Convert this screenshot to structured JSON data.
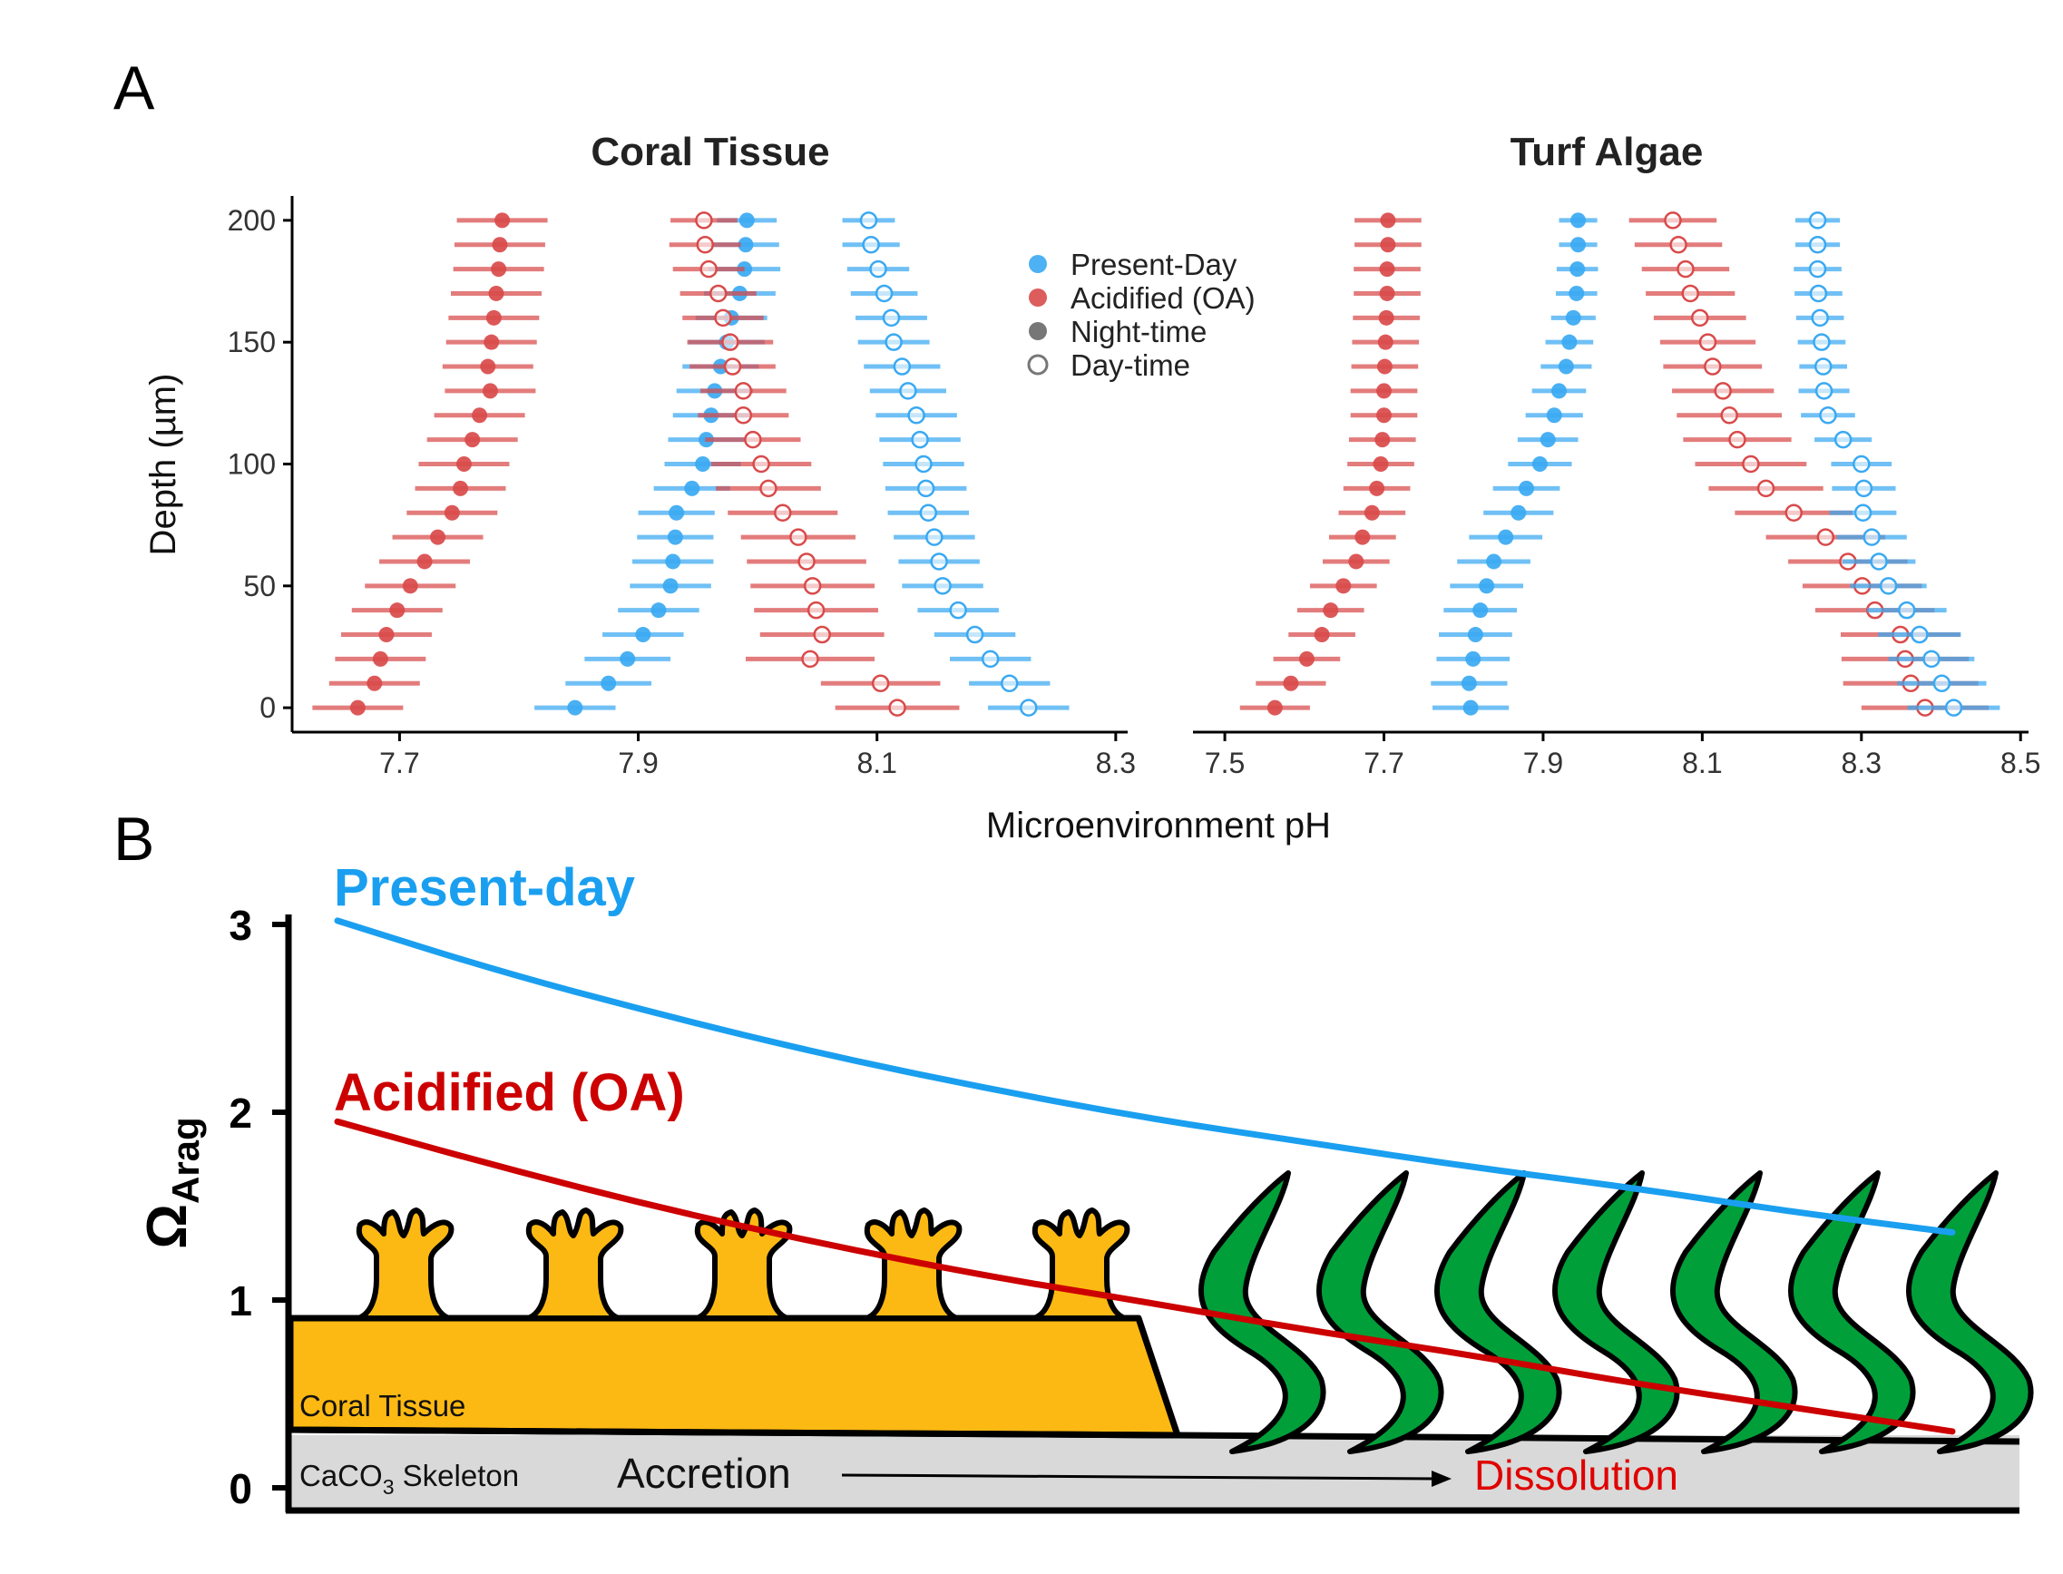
{
  "panel_a_letter": "A",
  "panel_b_letter": "B",
  "colors": {
    "present": "#3aa9f2",
    "acidified": "#d94a4a",
    "night_marker": "#777777",
    "coral": "#fdb913",
    "algae": "#009f3a",
    "skeleton": "#d9d9d9",
    "present_line": "#1a9ff0",
    "oa_line": "#cc0000"
  },
  "legend": {
    "present": "Present-Day",
    "acidified": "Acidified (OA)",
    "night": "Night-time",
    "day": "Day-time"
  },
  "axis": {
    "x_title": "Microenvironment pH",
    "y_title": "Depth (µm)"
  },
  "chart_data": [
    {
      "type": "scatter",
      "title": "Coral Tissue",
      "xlabel": "Microenvironment pH",
      "ylabel": "Depth (µm)",
      "xlim": [
        7.61,
        8.31
      ],
      "ylim": [
        -10,
        210
      ],
      "xticks": [
        7.7,
        7.9,
        8.1,
        8.3
      ],
      "yticks": [
        0,
        50,
        100,
        150,
        200
      ],
      "depths": [
        200,
        190,
        180,
        170,
        160,
        150,
        140,
        130,
        120,
        110,
        100,
        90,
        80,
        70,
        60,
        50,
        40,
        30,
        20,
        10,
        0
      ],
      "series": [
        {
          "name": "Acidified (OA), Night-time",
          "treatment": "acidified",
          "time": "night",
          "values": [
            7.786,
            7.784,
            7.783,
            7.781,
            7.779,
            7.777,
            7.774,
            7.776,
            7.767,
            7.761,
            7.754,
            7.751,
            7.744,
            7.732,
            7.721,
            7.709,
            7.698,
            7.689,
            7.684,
            7.679,
            7.665
          ],
          "err": [
            0.038,
            0.038,
            0.038,
            0.038,
            0.038,
            0.038,
            0.038,
            0.038,
            0.038,
            0.038,
            0.038,
            0.038,
            0.038,
            0.038,
            0.038,
            0.038,
            0.038,
            0.038,
            0.038,
            0.038,
            0.038
          ]
        },
        {
          "name": "Present-Day, Night-time",
          "treatment": "present",
          "time": "night",
          "values": [
            7.991,
            7.99,
            7.989,
            7.985,
            7.978,
            7.974,
            7.969,
            7.964,
            7.961,
            7.957,
            7.954,
            7.945,
            7.932,
            7.931,
            7.929,
            7.927,
            7.917,
            7.904,
            7.891,
            7.875,
            7.847
          ],
          "err": [
            0.025,
            0.028,
            0.03,
            0.03,
            0.03,
            0.032,
            0.032,
            0.032,
            0.032,
            0.032,
            0.032,
            0.032,
            0.032,
            0.032,
            0.034,
            0.034,
            0.034,
            0.034,
            0.036,
            0.036,
            0.034
          ]
        },
        {
          "name": "Acidified (OA), Day-time",
          "treatment": "acidified",
          "time": "day",
          "values": [
            7.955,
            7.956,
            7.959,
            7.967,
            7.971,
            7.977,
            7.979,
            7.988,
            7.988,
            7.996,
            8.003,
            8.009,
            8.021,
            8.034,
            8.041,
            8.046,
            8.049,
            8.054,
            8.044,
            8.103,
            8.117
          ],
          "err": [
            0.028,
            0.03,
            0.03,
            0.032,
            0.034,
            0.036,
            0.036,
            0.036,
            0.038,
            0.04,
            0.042,
            0.044,
            0.046,
            0.048,
            0.05,
            0.052,
            0.052,
            0.052,
            0.054,
            0.05,
            0.052
          ]
        },
        {
          "name": "Present-Day, Day-time",
          "treatment": "present",
          "time": "day",
          "values": [
            8.093,
            8.095,
            8.101,
            8.106,
            8.112,
            8.114,
            8.121,
            8.126,
            8.133,
            8.136,
            8.139,
            8.141,
            8.143,
            8.148,
            8.152,
            8.155,
            8.168,
            8.182,
            8.195,
            8.211,
            8.227
          ],
          "err": [
            0.022,
            0.024,
            0.026,
            0.028,
            0.03,
            0.03,
            0.032,
            0.032,
            0.034,
            0.034,
            0.034,
            0.034,
            0.034,
            0.034,
            0.034,
            0.034,
            0.034,
            0.034,
            0.034,
            0.034,
            0.034
          ]
        }
      ]
    },
    {
      "type": "scatter",
      "title": "Turf Algae",
      "xlabel": "Microenvironment pH",
      "ylabel": "Depth (µm)",
      "xlim": [
        7.46,
        8.51
      ],
      "ylim": [
        -10,
        210
      ],
      "xticks": [
        7.5,
        7.7,
        7.9,
        8.1,
        8.3,
        8.5
      ],
      "yticks": [
        0,
        50,
        100,
        150,
        200
      ],
      "depths": [
        200,
        190,
        180,
        170,
        160,
        150,
        140,
        130,
        120,
        110,
        100,
        90,
        80,
        70,
        60,
        50,
        40,
        30,
        20,
        10,
        0
      ],
      "series": [
        {
          "name": "Acidified (OA), Night-time",
          "treatment": "acidified",
          "time": "night",
          "values": [
            7.705,
            7.705,
            7.704,
            7.704,
            7.703,
            7.702,
            7.701,
            7.7,
            7.7,
            7.698,
            7.696,
            7.691,
            7.685,
            7.673,
            7.665,
            7.649,
            7.633,
            7.622,
            7.603,
            7.583,
            7.563
          ],
          "err": [
            0.042,
            0.042,
            0.042,
            0.042,
            0.042,
            0.042,
            0.042,
            0.042,
            0.042,
            0.042,
            0.042,
            0.042,
            0.042,
            0.042,
            0.042,
            0.042,
            0.042,
            0.042,
            0.042,
            0.044,
            0.044
          ]
        },
        {
          "name": "Present-Day, Night-time",
          "treatment": "present",
          "time": "night",
          "values": [
            7.944,
            7.944,
            7.943,
            7.942,
            7.938,
            7.933,
            7.929,
            7.92,
            7.914,
            7.906,
            7.896,
            7.879,
            7.869,
            7.853,
            7.838,
            7.829,
            7.821,
            7.815,
            7.812,
            7.807,
            7.809
          ],
          "err": [
            0.024,
            0.024,
            0.026,
            0.026,
            0.028,
            0.03,
            0.032,
            0.034,
            0.036,
            0.038,
            0.04,
            0.042,
            0.044,
            0.046,
            0.046,
            0.046,
            0.046,
            0.046,
            0.046,
            0.048,
            0.048
          ]
        },
        {
          "name": "Acidified (OA), Day-time",
          "treatment": "acidified",
          "time": "day",
          "values": [
            8.063,
            8.07,
            8.079,
            8.085,
            8.097,
            8.107,
            8.113,
            8.126,
            8.134,
            8.144,
            8.161,
            8.18,
            8.215,
            8.255,
            8.283,
            8.301,
            8.317,
            8.349,
            8.355,
            8.362,
            8.38
          ],
          "err": [
            0.055,
            0.055,
            0.055,
            0.056,
            0.058,
            0.06,
            0.062,
            0.064,
            0.066,
            0.068,
            0.07,
            0.072,
            0.074,
            0.075,
            0.075,
            0.075,
            0.075,
            0.075,
            0.08,
            0.085,
            0.08
          ]
        },
        {
          "name": "Present-Day, Day-time",
          "treatment": "present",
          "time": "day",
          "values": [
            8.245,
            8.245,
            8.245,
            8.246,
            8.248,
            8.25,
            8.252,
            8.253,
            8.258,
            8.277,
            8.3,
            8.303,
            8.302,
            8.313,
            8.322,
            8.334,
            8.357,
            8.373,
            8.388,
            8.401,
            8.416
          ],
          "err": [
            0.028,
            0.028,
            0.03,
            0.03,
            0.03,
            0.03,
            0.03,
            0.032,
            0.034,
            0.036,
            0.038,
            0.04,
            0.042,
            0.044,
            0.046,
            0.048,
            0.05,
            0.052,
            0.054,
            0.056,
            0.058
          ]
        }
      ]
    },
    {
      "type": "line",
      "title": "",
      "ylabel": "Ω",
      "ylabel_sub": "Arag",
      "ylim": [
        0,
        3
      ],
      "yticks": [
        0,
        1,
        2,
        3
      ],
      "x": [
        0,
        0.1,
        0.2,
        0.3,
        0.4,
        0.5,
        0.6,
        0.7,
        0.8,
        0.9,
        1.0
      ],
      "series": [
        {
          "name": "Present-day",
          "values": [
            3.02,
            2.75,
            2.52,
            2.31,
            2.13,
            1.97,
            1.84,
            1.71,
            1.6,
            1.47,
            1.36
          ]
        },
        {
          "name": "Acidified (OA)",
          "values": [
            1.95,
            1.71,
            1.49,
            1.3,
            1.13,
            0.99,
            0.84,
            0.71,
            0.56,
            0.43,
            0.3
          ]
        }
      ],
      "labels": {
        "coral_tissue": "Coral Tissue",
        "skeleton_prefix": "CaCO",
        "skeleton_sub": "3",
        "skeleton_suffix": " Skeleton",
        "accretion": "Accretion",
        "dissolution": "Dissolution"
      }
    }
  ]
}
